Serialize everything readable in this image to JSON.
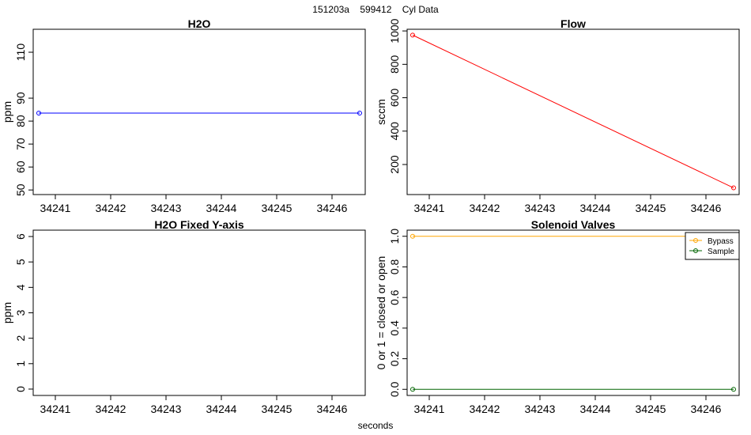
{
  "page": {
    "title": "151203a    599412    Cyl Data",
    "xlabel": "seconds"
  },
  "chart_data": [
    {
      "type": "line",
      "title": "H2O",
      "xlabel": "",
      "ylabel": "ppm",
      "xlim": [
        34240.6,
        34246.6
      ],
      "ylim": [
        48,
        120
      ],
      "xticks": [
        34241,
        34242,
        34243,
        34244,
        34245,
        34246
      ],
      "yticks": [
        50,
        60,
        70,
        80,
        90,
        110
      ],
      "series": [
        {
          "color": "#0000ff",
          "x": [
            34240.7,
            34246.5
          ],
          "y": [
            83.5,
            83.5
          ]
        }
      ]
    },
    {
      "type": "line",
      "title": "Flow",
      "xlabel": "",
      "ylabel": "sccm",
      "xlim": [
        34240.6,
        34246.6
      ],
      "ylim": [
        20,
        1010
      ],
      "xticks": [
        34241,
        34242,
        34243,
        34244,
        34245,
        34246
      ],
      "yticks": [
        200,
        400,
        600,
        800,
        1000
      ],
      "series": [
        {
          "color": "#ff0000",
          "x": [
            34240.7,
            34246.5
          ],
          "y": [
            975,
            60
          ]
        }
      ]
    },
    {
      "type": "line",
      "title": "H2O Fixed Y-axis",
      "xlabel": "",
      "ylabel": "ppm",
      "xlim": [
        34240.6,
        34246.6
      ],
      "ylim": [
        -0.25,
        6.25
      ],
      "xticks": [
        34241,
        34242,
        34243,
        34244,
        34245,
        34246
      ],
      "yticks": [
        0,
        1,
        2,
        3,
        4,
        5,
        6
      ],
      "series": []
    },
    {
      "type": "line",
      "title": "Solenoid Valves",
      "xlabel": "",
      "ylabel": "0 or 1 = closed or open",
      "xlim": [
        34240.6,
        34246.6
      ],
      "ylim": [
        -0.04,
        1.04
      ],
      "xticks": [
        34241,
        34242,
        34243,
        34244,
        34245,
        34246
      ],
      "yticks": [
        0.0,
        0.2,
        0.4,
        0.6,
        0.8,
        1.0
      ],
      "ytick_labels": [
        "0.0",
        "0.2",
        "0.4",
        "0.6",
        "0.8",
        "1.0"
      ],
      "legend": "top-right",
      "series": [
        {
          "name": "Bypass",
          "color": "#ffa500",
          "x": [
            34240.7,
            34246.5
          ],
          "y": [
            1,
            1
          ]
        },
        {
          "name": "Sample",
          "color": "#006400",
          "x": [
            34240.7,
            34246.5
          ],
          "y": [
            0,
            0
          ]
        }
      ]
    }
  ]
}
